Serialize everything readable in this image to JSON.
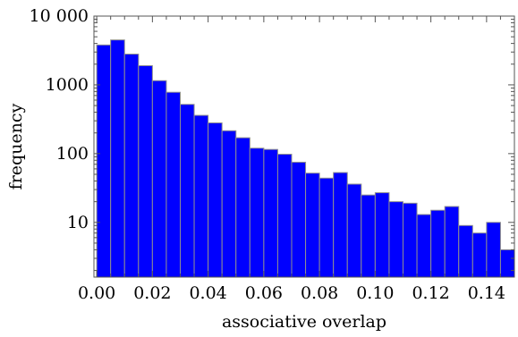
{
  "chart_data": {
    "type": "bar",
    "title": "",
    "xlabel": "associative overlap",
    "ylabel": "frequency",
    "x_scale": "linear",
    "y_scale": "log",
    "xlim": [
      -0.001,
      0.15
    ],
    "ylim": [
      1.6,
      10000
    ],
    "bin_width": 0.005,
    "bin_starts": [
      0.0,
      0.005,
      0.01,
      0.015,
      0.02,
      0.025,
      0.03,
      0.035,
      0.04,
      0.045,
      0.05,
      0.055,
      0.06,
      0.065,
      0.07,
      0.075,
      0.08,
      0.085,
      0.09,
      0.095,
      0.1,
      0.105,
      0.11,
      0.115,
      0.12,
      0.125,
      0.13,
      0.135,
      0.14,
      0.145
    ],
    "values": [
      3800,
      4500,
      2800,
      1900,
      1150,
      780,
      520,
      360,
      280,
      215,
      170,
      120,
      115,
      98,
      75,
      52,
      44,
      53,
      36,
      25,
      27,
      20,
      19,
      13,
      15,
      17,
      9,
      7,
      10,
      4
    ],
    "x_ticks": [
      {
        "value": 0.0,
        "label": "0.00"
      },
      {
        "value": 0.02,
        "label": "0.02"
      },
      {
        "value": 0.04,
        "label": "0.04"
      },
      {
        "value": 0.06,
        "label": "0.06"
      },
      {
        "value": 0.08,
        "label": "0.08"
      },
      {
        "value": 0.1,
        "label": "0.10"
      },
      {
        "value": 0.12,
        "label": "0.12"
      },
      {
        "value": 0.14,
        "label": "0.14"
      }
    ],
    "y_ticks": [
      {
        "value": 10,
        "label": "10"
      },
      {
        "value": 100,
        "label": "100"
      },
      {
        "value": 1000,
        "label": "1000"
      },
      {
        "value": 10000,
        "label": "10 000"
      }
    ],
    "bar_color": "#0000ff",
    "bar_edge_color": "#8f8f8f",
    "grid": false,
    "legend": "none"
  }
}
